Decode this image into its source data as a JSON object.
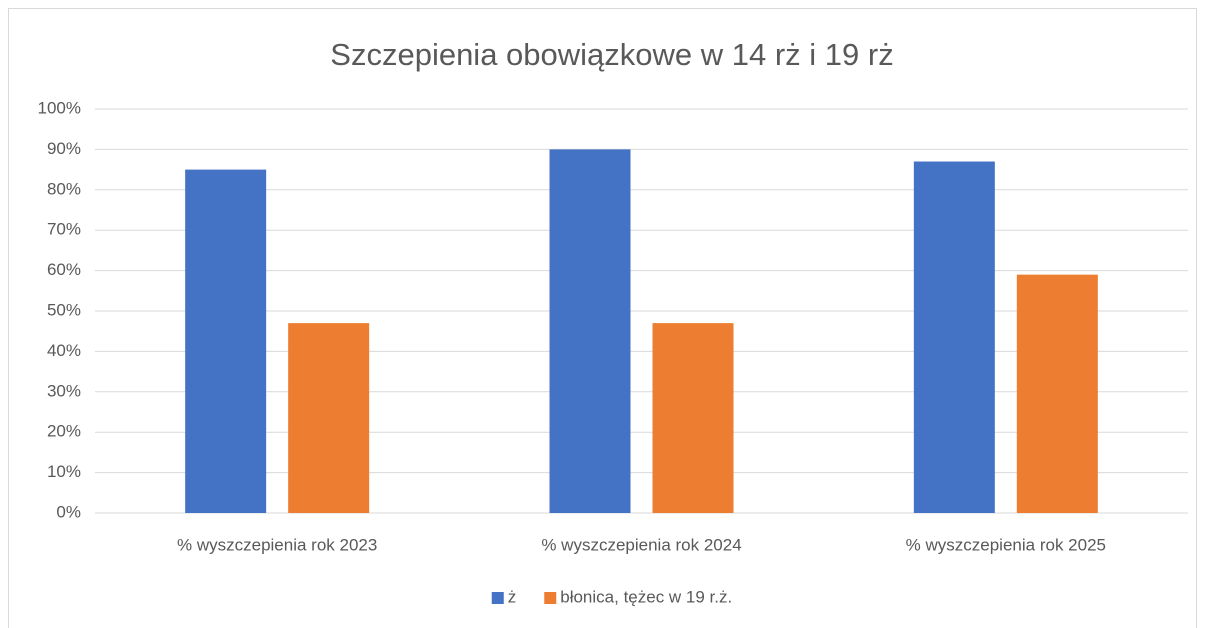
{
  "chart_data": {
    "type": "bar",
    "title": "Szczepienia obowiązkowe w 14 rż i 19 rż",
    "categories": [
      "% wyszczepienia rok 2023",
      "% wyszczepienia rok 2024",
      "% wyszczepienia rok 2025"
    ],
    "series": [
      {
        "name": "ż",
        "color": "#4472c4",
        "values": [
          85,
          90,
          87
        ]
      },
      {
        "name": "błonica, tężec w 19 r.ż.",
        "color": "#ed7d31",
        "values": [
          47,
          47,
          59
        ]
      }
    ],
    "ylim": [
      0,
      100
    ],
    "yticks": [
      {
        "value": 0,
        "label": "0%"
      },
      {
        "value": 10,
        "label": "10%"
      },
      {
        "value": 20,
        "label": "20%"
      },
      {
        "value": 30,
        "label": "30%"
      },
      {
        "value": 40,
        "label": "40%"
      },
      {
        "value": 50,
        "label": "50%"
      },
      {
        "value": 60,
        "label": "60%"
      },
      {
        "value": 70,
        "label": "70%"
      },
      {
        "value": 80,
        "label": "80%"
      },
      {
        "value": 90,
        "label": "90%"
      },
      {
        "value": 100,
        "label": "100%"
      }
    ],
    "grid": true,
    "legend": "bottom"
  }
}
